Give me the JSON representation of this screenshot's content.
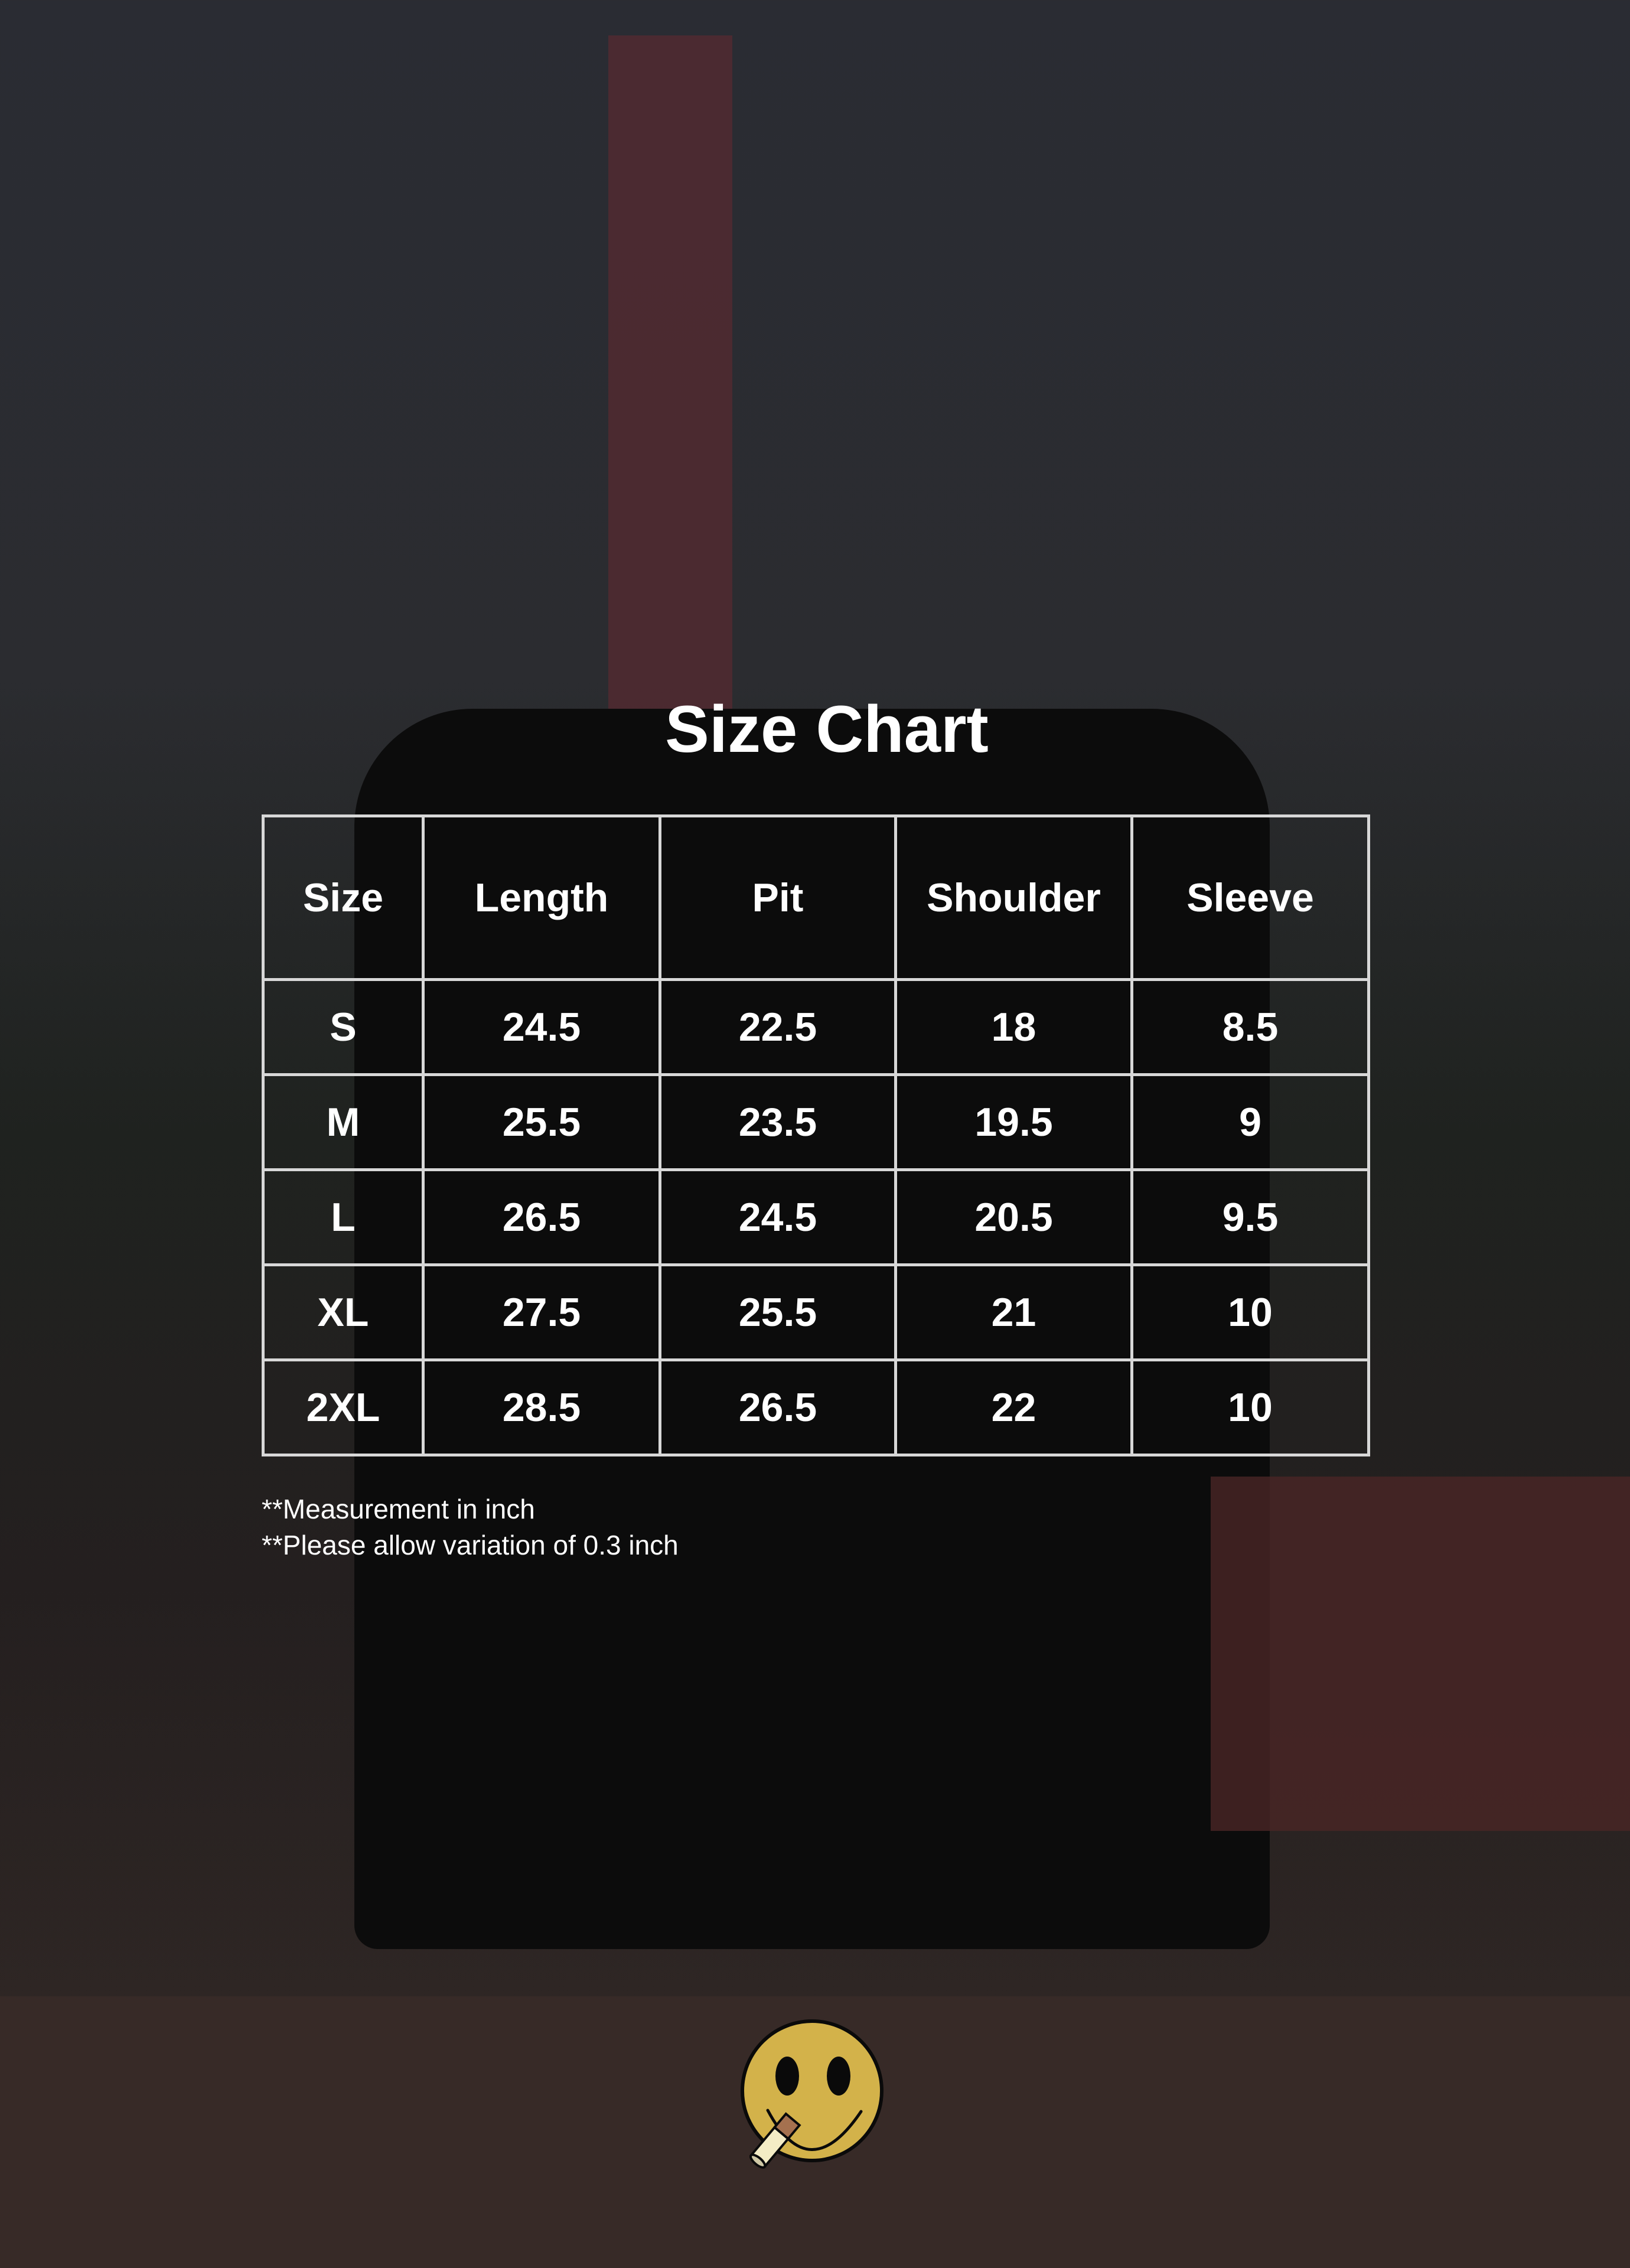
{
  "title": "Size Chart",
  "table": {
    "headers": [
      "Size",
      "Length",
      "Pit",
      "Shoulder",
      "Sleeve"
    ],
    "rows": [
      [
        "S",
        "24.5",
        "22.5",
        "18",
        "8.5"
      ],
      [
        "M",
        "25.5",
        "23.5",
        "19.5",
        "9"
      ],
      [
        "L",
        "26.5",
        "24.5",
        "20.5",
        "9.5"
      ],
      [
        "XL",
        "27.5",
        "25.5",
        "21",
        "10"
      ],
      [
        "2XL",
        "28.5",
        "26.5",
        "22",
        "10"
      ]
    ]
  },
  "notes": [
    "**Measurement in inch",
    "**Please allow variation of 0.3 inch"
  ],
  "logo": {
    "icon": "smiley-face-with-cigarette-icon",
    "color": "#d3b24a"
  }
}
